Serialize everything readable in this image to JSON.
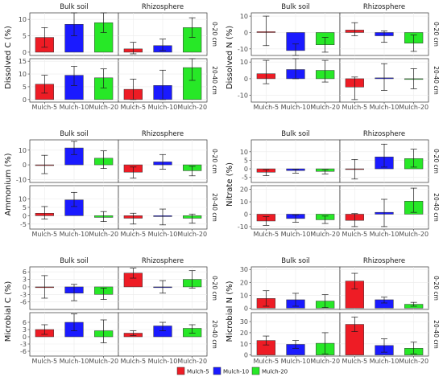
{
  "colors": {
    "Mulch-5": "#ee1c25",
    "Mulch-10": "#1a1aff",
    "Mulch-20": "#27e827",
    "strip": "#d9d9d9",
    "grid": "#ebebeb"
  },
  "chart_data": [
    {
      "type": "bar",
      "ylabel": "Dissolved C (%)",
      "facet_cols": [
        "Bulk soil",
        "Rhizosphere"
      ],
      "facet_rows": [
        "0-20 cm",
        "20-40 cm"
      ],
      "categories": [
        "Mulch-5",
        "Mulch-10",
        "Mulch-20"
      ],
      "rows": [
        {
          "ylim": [
            -1,
            12
          ],
          "ticks": [
            0,
            5,
            10
          ],
          "bulk": [
            {
              "v": 4.5,
              "lo": 1.5,
              "hi": 7.5
            },
            {
              "v": 8.5,
              "lo": 5.0,
              "hi": 12.0
            },
            {
              "v": 9.0,
              "lo": 6.0,
              "hi": 12.0
            }
          ],
          "rhizo": [
            {
              "v": 1.0,
              "lo": -0.5,
              "hi": 3.0
            },
            {
              "v": 2.0,
              "lo": 0.5,
              "hi": 4.0
            },
            {
              "v": 7.5,
              "lo": 4.5,
              "hi": 10.5
            }
          ]
        },
        {
          "ylim": [
            -1,
            16
          ],
          "ticks": [
            0,
            5,
            10,
            15
          ],
          "bulk": [
            {
              "v": 6.0,
              "lo": 2.5,
              "hi": 9.5
            },
            {
              "v": 9.5,
              "lo": 5.5,
              "hi": 13.0
            },
            {
              "v": 8.5,
              "lo": 4.5,
              "hi": 12.0
            }
          ],
          "rhizo": [
            {
              "v": 4.0,
              "lo": 0.0,
              "hi": 8.0
            },
            {
              "v": 5.5,
              "lo": 0.0,
              "hi": 11.5
            },
            {
              "v": 12.5,
              "lo": 7.5,
              "hi": 16.0
            }
          ]
        }
      ]
    },
    {
      "type": "bar",
      "ylabel": "Dissolved N (%)",
      "facet_cols": [
        "Bulk soil",
        "Rhizosphere"
      ],
      "facet_rows": [
        "0-20 cm",
        "20-40 cm"
      ],
      "categories": [
        "Mulch-5",
        "Mulch-10",
        "Mulch-20"
      ],
      "rows": [
        {
          "ylim": [
            -14,
            12
          ],
          "ticks": [
            -10,
            0,
            10
          ],
          "bulk": [
            {
              "v": 0.5,
              "lo": -8.0,
              "hi": 10.0
            },
            {
              "v": -11.0,
              "lo": -15.0,
              "hi": -7.0
            },
            {
              "v": -7.5,
              "lo": -12.0,
              "hi": -3.0
            }
          ],
          "rhizo": [
            {
              "v": 1.5,
              "lo": -2.0,
              "hi": 6.0
            },
            {
              "v": -2.0,
              "lo": -6.0,
              "hi": 1.0
            },
            {
              "v": -6.5,
              "lo": -11.5,
              "hi": -1.5
            }
          ]
        },
        {
          "ylim": [
            -14,
            12
          ],
          "ticks": [
            -10,
            0,
            10
          ],
          "bulk": [
            {
              "v": 3.0,
              "lo": -3.0,
              "hi": 11.0
            },
            {
              "v": 5.5,
              "lo": 0.0,
              "hi": 12.0
            },
            {
              "v": 5.0,
              "lo": -2.0,
              "hi": 11.0
            }
          ],
          "rhizo": [
            {
              "v": -5.0,
              "lo": -12.5,
              "hi": 1.0
            },
            {
              "v": 0.5,
              "lo": -7.0,
              "hi": 9.0
            },
            {
              "v": 0.0,
              "lo": -6.0,
              "hi": 6.0
            }
          ]
        }
      ]
    },
    {
      "type": "bar",
      "ylabel": "Ammonium (%)",
      "facet_cols": [
        "Bulk soil",
        "Rhizosphere"
      ],
      "facet_rows": [
        "0-20 cm",
        "20-40 cm"
      ],
      "categories": [
        "Mulch-5",
        "Mulch-10",
        "Mulch-20"
      ],
      "rows": [
        {
          "ylim": [
            -12,
            17
          ],
          "ticks": [
            -10,
            0,
            10
          ],
          "bulk": [
            {
              "v": 0.0,
              "lo": -6.0,
              "hi": 6.5
            },
            {
              "v": 11.5,
              "lo": 7.0,
              "hi": 16.0
            },
            {
              "v": 4.5,
              "lo": -2.5,
              "hi": 9.5
            }
          ],
          "rhizo": [
            {
              "v": -5.0,
              "lo": -9.0,
              "hi": -1.5
            },
            {
              "v": 2.0,
              "lo": -3.0,
              "hi": 7.0
            },
            {
              "v": -4.0,
              "lo": -7.5,
              "hi": -1.0
            }
          ]
        },
        {
          "ylim": [
            -8,
            18
          ],
          "ticks": [
            -5,
            0,
            5,
            10
          ],
          "bulk": [
            {
              "v": 1.5,
              "lo": -2.0,
              "hi": 5.5
            },
            {
              "v": 9.5,
              "lo": 5.5,
              "hi": 14.0
            },
            {
              "v": -1.0,
              "lo": -3.5,
              "hi": 2.5
            }
          ],
          "rhizo": [
            {
              "v": -1.5,
              "lo": -5.0,
              "hi": 1.5
            },
            {
              "v": -0.5,
              "lo": -5.5,
              "hi": 4.0
            },
            {
              "v": -1.5,
              "lo": -4.5,
              "hi": 1.0
            }
          ]
        }
      ]
    },
    {
      "type": "bar",
      "ylabel": "Nitrate (%)",
      "facet_cols": [
        "Bulk soil",
        "Rhizosphere"
      ],
      "facet_rows": [
        "0-20 cm",
        "20-40 cm"
      ],
      "categories": [
        "Mulch-5",
        "Mulch-10",
        "Mulch-20"
      ],
      "rows": [
        {
          "ylim": [
            -8,
            17
          ],
          "ticks": [
            -5,
            0,
            5,
            10
          ],
          "bulk": [
            {
              "v": -2.0,
              "lo": -4.0,
              "hi": -0.5
            },
            {
              "v": -1.0,
              "lo": -2.5,
              "hi": -0.2
            },
            {
              "v": -1.5,
              "lo": -3.0,
              "hi": -0.5
            }
          ],
          "rhizo": [
            {
              "v": 0.0,
              "lo": -6.0,
              "hi": 5.5
            },
            {
              "v": 7.0,
              "lo": 1.0,
              "hi": 14.5
            },
            {
              "v": 6.0,
              "lo": 1.0,
              "hi": 11.5
            }
          ]
        },
        {
          "ylim": [
            -12,
            23
          ],
          "ticks": [
            -10,
            0,
            10,
            20
          ],
          "bulk": [
            {
              "v": -5.5,
              "lo": -9.0,
              "hi": -2.0
            },
            {
              "v": -3.5,
              "lo": -6.5,
              "hi": -0.5
            },
            {
              "v": -4.5,
              "lo": -7.5,
              "hi": -1.5
            }
          ],
          "rhizo": [
            {
              "v": -5.0,
              "lo": -10.0,
              "hi": 0.5
            },
            {
              "v": 1.5,
              "lo": -10.0,
              "hi": 12.0
            },
            {
              "v": 10.5,
              "lo": 1.5,
              "hi": 21.0
            }
          ]
        }
      ]
    },
    {
      "type": "bar",
      "ylabel": "Microbial C (%)",
      "facet_cols": [
        "Bulk soil",
        "Rhizosphere"
      ],
      "facet_rows": [
        "0-20 cm",
        "20-40 cm"
      ],
      "categories": [
        "Mulch-5",
        "Mulch-10",
        "Mulch-20"
      ],
      "rows": [
        {
          "ylim": [
            -9,
            8
          ],
          "ticks": [
            -6,
            -3,
            0,
            3,
            6
          ],
          "bulk": [
            {
              "v": 0.0,
              "lo": -4.5,
              "hi": 4.5
            },
            {
              "v": -2.5,
              "lo": -5.5,
              "hi": 1.0
            },
            {
              "v": -3.0,
              "lo": -5.0,
              "hi": -0.5
            }
          ],
          "rhizo": [
            {
              "v": 5.5,
              "lo": 3.5,
              "hi": 7.5
            },
            {
              "v": 0.0,
              "lo": -2.5,
              "hi": 2.5
            },
            {
              "v": 3.0,
              "lo": -0.5,
              "hi": 6.5
            }
          ]
        },
        {
          "ylim": [
            -8,
            10
          ],
          "ticks": [
            -6,
            -3,
            0,
            3,
            6
          ],
          "bulk": [
            {
              "v": 3.0,
              "lo": 1.0,
              "hi": 5.0
            },
            {
              "v": 6.0,
              "lo": 2.5,
              "hi": 9.5
            },
            {
              "v": 2.5,
              "lo": -2.5,
              "hi": 7.0
            }
          ],
          "rhizo": [
            {
              "v": 1.5,
              "lo": 0.5,
              "hi": 2.5
            },
            {
              "v": 4.5,
              "lo": 2.5,
              "hi": 6.0
            },
            {
              "v": 3.5,
              "lo": 1.5,
              "hi": 5.0
            }
          ]
        }
      ]
    },
    {
      "type": "bar",
      "ylabel": "Microbial N (%)",
      "facet_cols": [
        "Bulk soil",
        "Rhizosphere"
      ],
      "facet_rows": [
        "0-20 cm",
        "20-40 cm"
      ],
      "categories": [
        "Mulch-5",
        "Mulch-10",
        "Mulch-20"
      ],
      "rows": [
        {
          "ylim": [
            -1,
            32
          ],
          "ticks": [
            0,
            10,
            20,
            30
          ],
          "bulk": [
            {
              "v": 7.5,
              "lo": 1.5,
              "hi": 13.5
            },
            {
              "v": 6.5,
              "lo": 1.5,
              "hi": 11.5
            },
            {
              "v": 5.5,
              "lo": 0.5,
              "hi": 10.5
            }
          ],
          "rhizo": [
            {
              "v": 21.0,
              "lo": 15.0,
              "hi": 27.0
            },
            {
              "v": 6.5,
              "lo": 4.0,
              "hi": 8.5
            },
            {
              "v": 3.0,
              "lo": 1.5,
              "hi": 4.5
            }
          ]
        },
        {
          "ylim": [
            -1,
            38
          ],
          "ticks": [
            0,
            10,
            20,
            30
          ],
          "bulk": [
            {
              "v": 13.0,
              "lo": 9.0,
              "hi": 17.0
            },
            {
              "v": 9.5,
              "lo": 6.0,
              "hi": 13.0
            },
            {
              "v": 10.5,
              "lo": 1.0,
              "hi": 20.0
            }
          ],
          "rhizo": [
            {
              "v": 27.5,
              "lo": 21.0,
              "hi": 34.0
            },
            {
              "v": 8.5,
              "lo": 2.5,
              "hi": 14.5
            },
            {
              "v": 6.0,
              "lo": 1.0,
              "hi": 11.5
            }
          ]
        }
      ]
    }
  ],
  "legend": {
    "items": [
      "Mulch-5",
      "Mulch-10",
      "Mulch-20"
    ],
    "position": "bottom"
  }
}
